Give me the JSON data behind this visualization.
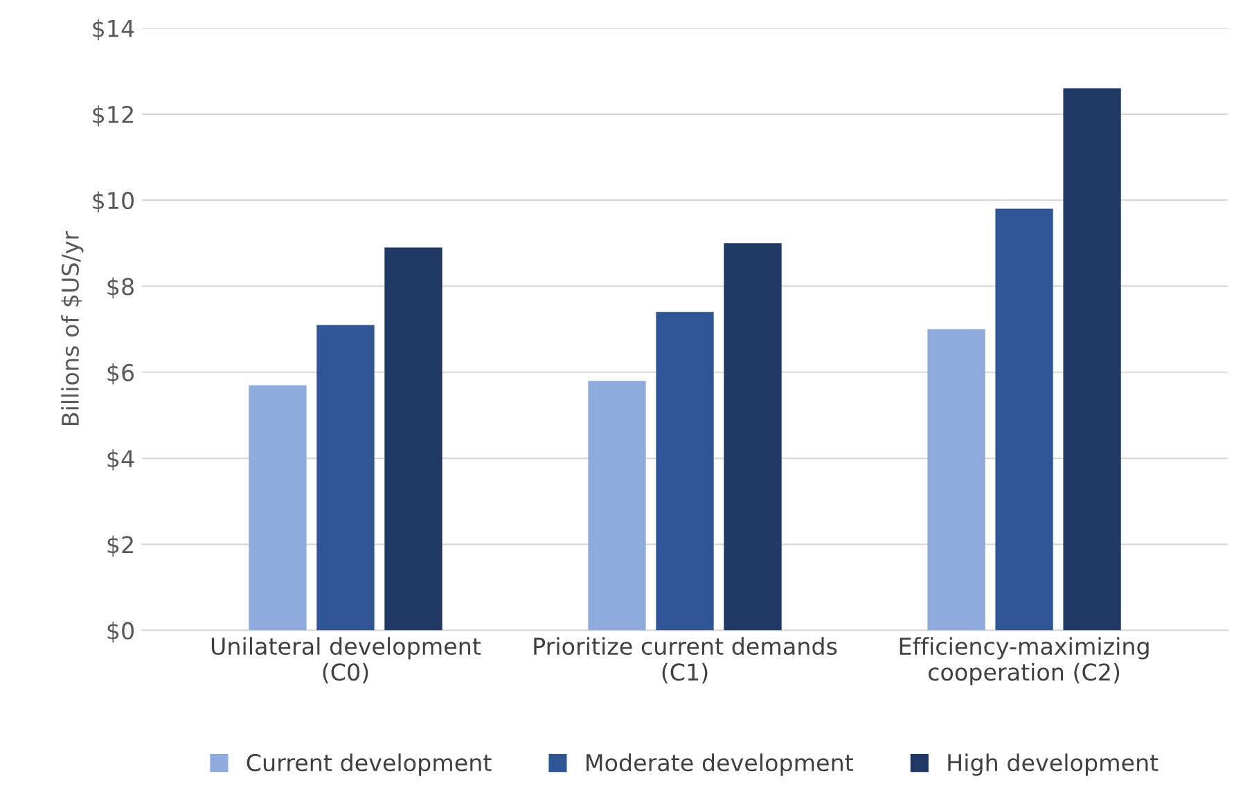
{
  "chart_data": {
    "type": "bar",
    "ylabel": "Billions of $US/yr",
    "categories": [
      "Unilateral development\n(C0)",
      "Prioritize current demands\n(C1)",
      "Efficiency-maximizing\ncooperation (C2)"
    ],
    "series": [
      {
        "name": "Current development",
        "color": "#8faadc",
        "values": [
          5.7,
          5.8,
          7.0
        ]
      },
      {
        "name": "Moderate development",
        "color": "#2f5597",
        "values": [
          7.1,
          7.4,
          9.8
        ]
      },
      {
        "name": "High development",
        "color": "#203864",
        "values": [
          8.9,
          9.0,
          12.6
        ]
      }
    ],
    "ylim": [
      0,
      14
    ],
    "yticks": [
      {
        "value": 0,
        "label": "$0"
      },
      {
        "value": 2,
        "label": "$2"
      },
      {
        "value": 4,
        "label": "$4"
      },
      {
        "value": 6,
        "label": "$6"
      },
      {
        "value": 8,
        "label": "$8"
      },
      {
        "value": 10,
        "label": "$10"
      },
      {
        "value": 12,
        "label": "$12"
      },
      {
        "value": 14,
        "label": "$14"
      }
    ],
    "grid": "y",
    "legend": "bottom"
  }
}
